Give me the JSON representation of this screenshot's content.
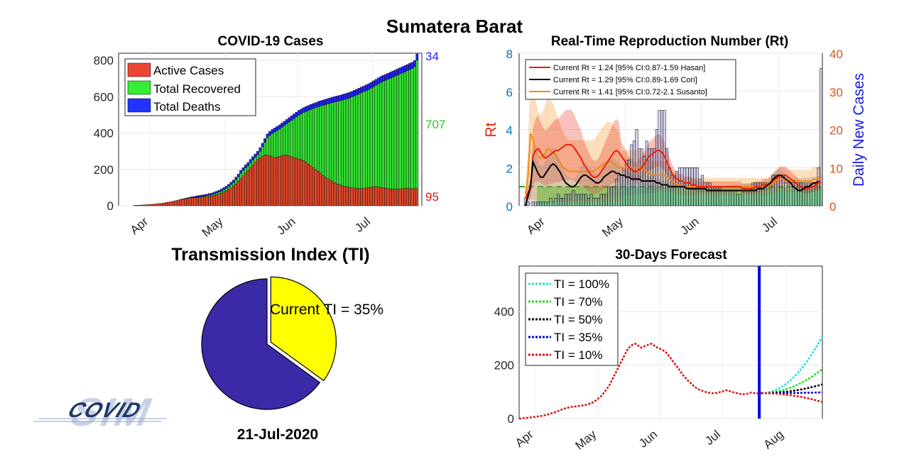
{
  "page_title": "Sumatera Barat",
  "date_label": "21-Jul-2020",
  "logo_text": "COVID SIM",
  "chart_data": [
    {
      "id": "cases",
      "type": "bar",
      "title": "COVID-19 Cases",
      "x_ticks": [
        "Apr",
        "May",
        "Jun",
        "Jul"
      ],
      "y_ticks": [
        "0",
        "200",
        "400",
        "600",
        "800"
      ],
      "ylim": [
        0,
        840
      ],
      "stacked": true,
      "legend": [
        "Active Cases",
        "Total Recovered",
        "Total Deaths"
      ],
      "legend_position": "top-left",
      "colors": {
        "active": "#d9472b",
        "recovered": "#33dd33",
        "deaths": "#2222ee"
      },
      "end_labels": {
        "deaths": "34",
        "recovered": "707",
        "active": "95"
      },
      "days": 120,
      "total_cases": [
        0,
        0,
        2,
        3,
        3,
        4,
        5,
        6,
        7,
        8,
        9,
        10,
        12,
        13,
        15,
        18,
        20,
        22,
        25,
        28,
        31,
        35,
        38,
        41,
        44,
        47,
        50,
        52,
        55,
        57,
        59,
        61,
        64,
        67,
        70,
        75,
        80,
        85,
        92,
        100,
        108,
        118,
        130,
        142,
        158,
        175,
        195,
        210,
        225,
        238,
        255,
        270,
        285,
        300,
        320,
        345,
        370,
        395,
        410,
        420,
        428,
        436,
        445,
        455,
        465,
        475,
        485,
        495,
        505,
        515,
        525,
        532,
        540,
        546,
        552,
        558,
        563,
        568,
        573,
        578,
        582,
        586,
        590,
        594,
        598,
        602,
        605,
        608,
        612,
        616,
        620,
        624,
        630,
        636,
        642,
        648,
        654,
        660,
        666,
        672,
        680,
        688,
        696,
        704,
        712,
        718,
        724,
        730,
        736,
        742,
        748,
        754,
        760,
        766,
        772,
        778,
        784,
        790,
        800,
        836
      ],
      "active_cases": [
        0,
        0,
        2,
        3,
        3,
        4,
        5,
        6,
        7,
        8,
        9,
        10,
        12,
        13,
        15,
        18,
        20,
        22,
        25,
        28,
        31,
        34,
        37,
        39,
        41,
        43,
        44,
        45,
        46,
        47,
        48,
        49,
        50,
        52,
        54,
        57,
        60,
        64,
        70,
        76,
        82,
        90,
        100,
        110,
        120,
        135,
        150,
        165,
        180,
        195,
        210,
        225,
        240,
        255,
        265,
        272,
        278,
        280,
        276,
        270,
        265,
        268,
        272,
        275,
        278,
        280,
        275,
        270,
        265,
        262,
        258,
        254,
        248,
        240,
        230,
        220,
        210,
        200,
        190,
        180,
        168,
        158,
        150,
        142,
        135,
        128,
        120,
        115,
        110,
        106,
        104,
        101,
        99,
        97,
        96,
        95,
        95,
        96,
        98,
        100,
        102,
        104,
        106,
        104,
        101,
        99,
        97,
        95,
        93,
        92,
        91,
        92,
        93,
        95,
        97,
        96,
        95,
        94,
        95,
        95
      ],
      "deaths": [
        0,
        0,
        0,
        0,
        0,
        0,
        0,
        0,
        0,
        0,
        1,
        1,
        1,
        1,
        2,
        2,
        2,
        3,
        3,
        4,
        4,
        4,
        5,
        5,
        5,
        6,
        6,
        6,
        7,
        7,
        7,
        8,
        8,
        8,
        9,
        9,
        10,
        10,
        11,
        11,
        12,
        12,
        13,
        14,
        14,
        15,
        16,
        16,
        17,
        17,
        18,
        18,
        19,
        19,
        20,
        20,
        21,
        21,
        22,
        22,
        22,
        23,
        23,
        23,
        24,
        24,
        24,
        25,
        25,
        25,
        26,
        26,
        26,
        27,
        27,
        27,
        28,
        28,
        28,
        28,
        29,
        29,
        29,
        29,
        30,
        30,
        30,
        30,
        30,
        31,
        31,
        31,
        31,
        31,
        32,
        32,
        32,
        32,
        32,
        32,
        33,
        33,
        33,
        33,
        33,
        33,
        33,
        33,
        33,
        34,
        34,
        34,
        34,
        34,
        34,
        34,
        34,
        34,
        34,
        34
      ]
    },
    {
      "id": "rt",
      "type": "line",
      "title": "Real-Time Reproduction Number (Rt)",
      "ylabel_left": "Rt",
      "ylabel_right": "Daily New Cases",
      "x_ticks": [
        "Apr",
        "May",
        "Jun",
        "Jul"
      ],
      "y_ticks_left": [
        "0",
        "2",
        "4",
        "6",
        "8"
      ],
      "y_ticks_right": [
        "0",
        "10",
        "20",
        "30",
        "40"
      ],
      "ylim_left": [
        0,
        8
      ],
      "ylim_right": [
        0,
        40
      ],
      "legend": [
        "Current Rt = 1.24 [95% CI:0.87-1.59 Hasan]",
        "Current Rt = 1.29 [95% CI:0.89-1.69 Cori]",
        "Current Rt = 1.41 [95% CI:0.72-2.1 Susanto]"
      ],
      "legend_position": "top-left",
      "colors": {
        "hasan": "#e8200a",
        "cori": "#000000",
        "susanto": "#f08a10",
        "left_axis": "#0072bd",
        "right_axis": "#d95319",
        "rt_label": "#e8200a",
        "right_label": "#1a1ae0"
      },
      "daily_new_cases": [
        0,
        0,
        2,
        1,
        0,
        1,
        1,
        1,
        1,
        1,
        1,
        1,
        2,
        1,
        2,
        3,
        2,
        2,
        3,
        3,
        3,
        4,
        3,
        3,
        3,
        3,
        3,
        2,
        3,
        2,
        2,
        2,
        3,
        3,
        3,
        5,
        5,
        5,
        7,
        8,
        8,
        10,
        12,
        12,
        16,
        17,
        20,
        15,
        15,
        13,
        17,
        15,
        15,
        15,
        20,
        25,
        25,
        25,
        15,
        10,
        8,
        8,
        9,
        10,
        10,
        10,
        10,
        10,
        10,
        10,
        10,
        7,
        8,
        6,
        6,
        6,
        5,
        5,
        5,
        5,
        4,
        4,
        4,
        4,
        4,
        4,
        3,
        3,
        4,
        4,
        4,
        4,
        6,
        6,
        6,
        6,
        6,
        6,
        6,
        6,
        8,
        8,
        8,
        8,
        8,
        6,
        6,
        6,
        6,
        6,
        6,
        6,
        6,
        6,
        6,
        6,
        6,
        6,
        10,
        36
      ],
      "rt_hasan": [
        0,
        0,
        0.4,
        0.7,
        0.9,
        2.6,
        2.9,
        3.0,
        2.8,
        2.6,
        2.5,
        2.6,
        2.7,
        2.8,
        2.9,
        2.9,
        3.0,
        3.1,
        3.2,
        3.2,
        3.2,
        3.1,
        2.9,
        2.7,
        2.5,
        2.2,
        2.0,
        1.8,
        1.6,
        1.5,
        1.5,
        1.6,
        1.8,
        2.0,
        2.2,
        2.4,
        2.6,
        2.8,
        2.9,
        2.8,
        2.6,
        2.4,
        2.2,
        2.0,
        1.9,
        1.8,
        1.8,
        1.9,
        2.0,
        2.2,
        2.4,
        2.6,
        2.7,
        2.8,
        2.9,
        2.9,
        2.8,
        2.6,
        2.3,
        2.0,
        1.7,
        1.5,
        1.4,
        1.3,
        1.3,
        1.2,
        1.2,
        1.2,
        1.1,
        1.1,
        1.0,
        1.0,
        1.0,
        1.0,
        1.0,
        1.0,
        1.0,
        1.0,
        1.0,
        1.0,
        1.0,
        1.0,
        1.0,
        1.0,
        1.0,
        1.0,
        1.0,
        1.0,
        0.9,
        0.9,
        0.9,
        0.9,
        0.9,
        1.0,
        1.0,
        1.0,
        1.1,
        1.1,
        1.1,
        1.2,
        1.3,
        1.4,
        1.5,
        1.6,
        1.6,
        1.6,
        1.5,
        1.4,
        1.3,
        1.2,
        1.1,
        1.0,
        0.9,
        0.9,
        0.9,
        1.0,
        1.0,
        1.1,
        1.2,
        1.24
      ],
      "rt_cori": [
        0,
        0,
        0,
        0.5,
        1.0,
        2.3,
        2.0,
        1.7,
        1.5,
        1.5,
        1.7,
        1.9,
        2.1,
        2.2,
        2.1,
        1.9,
        1.7,
        1.4,
        1.2,
        1.1,
        1.0,
        1.0,
        1.1,
        1.3,
        1.5,
        1.6,
        1.6,
        1.5,
        1.4,
        1.3,
        1.2,
        1.2,
        1.3,
        1.5,
        1.6,
        1.7,
        1.8,
        1.8,
        1.7,
        1.7,
        1.6,
        1.6,
        1.5,
        1.5,
        1.4,
        1.4,
        1.4,
        1.4,
        1.3,
        1.3,
        1.3,
        1.3,
        1.3,
        1.3,
        1.2,
        1.2,
        1.1,
        1.1,
        1.1,
        1.0,
        1.0,
        1.0,
        1.0,
        1.0,
        1.0,
        1.0,
        0.9,
        0.9,
        0.9,
        0.9,
        0.9,
        0.9,
        0.9,
        0.9,
        0.8,
        0.8,
        0.8,
        0.8,
        0.8,
        0.8,
        0.8,
        0.8,
        0.8,
        0.8,
        0.8,
        0.8,
        0.8,
        0.8,
        0.8,
        0.8,
        0.8,
        0.8,
        0.8,
        0.8,
        0.9,
        0.9,
        0.9,
        1.0,
        1.1,
        1.2,
        1.4,
        1.5,
        1.6,
        1.6,
        1.5,
        1.4,
        1.3,
        1.2,
        1.0,
        0.9,
        0.8,
        0.8,
        0.9,
        1.0,
        1.0,
        1.1,
        1.2,
        1.2,
        1.29
      ],
      "rt_susanto": [
        0,
        0,
        0.6,
        1.5,
        3.8,
        3.5,
        2.9,
        2.6,
        2.5,
        2.6,
        2.8,
        3.0,
        2.9,
        2.8,
        2.6,
        2.4,
        2.2,
        2.0,
        1.9,
        1.8,
        1.8,
        1.8,
        1.8,
        1.8,
        1.8,
        1.8,
        1.8,
        1.8,
        1.8,
        1.8,
        1.9,
        2.0,
        2.1,
        2.2,
        2.3,
        2.3,
        2.3,
        2.2,
        2.1,
        2.0,
        2.0,
        2.0,
        2.0,
        2.0,
        2.0,
        2.0,
        2.0,
        2.0,
        2.0,
        1.9,
        1.8,
        1.7,
        1.6,
        1.6,
        1.6,
        1.6,
        1.6,
        1.6,
        1.5,
        1.4,
        1.3,
        1.2,
        1.1,
        1.1,
        1.0,
        1.0,
        1.0,
        1.0,
        1.0,
        1.0,
        1.0,
        1.0,
        1.0,
        1.0,
        1.0,
        1.0,
        1.0,
        1.0,
        1.0,
        1.0,
        1.0,
        1.0,
        1.0,
        1.0,
        1.0,
        1.0,
        1.0,
        1.0,
        1.0,
        1.0,
        1.0,
        1.0,
        1.0,
        1.0,
        1.0,
        1.0,
        1.0,
        1.0,
        1.0,
        1.1,
        1.2,
        1.3,
        1.4,
        1.4,
        1.4,
        1.3,
        1.3,
        1.3,
        1.3,
        1.3,
        1.3,
        1.3,
        1.3,
        1.3,
        1.3,
        1.3,
        1.4,
        1.4,
        1.41,
        1.41
      ]
    },
    {
      "id": "ti",
      "type": "pie",
      "title": "Transmission Index (TI)",
      "values": [
        35,
        65
      ],
      "colors": [
        "#ffff00",
        "#3a2aa8"
      ],
      "label": "Current TI = 35%"
    },
    {
      "id": "forecast",
      "type": "line",
      "title": "30-Days Forecast",
      "x_ticks": [
        "Apr",
        "May",
        "Jun",
        "Jul",
        "Aug"
      ],
      "y_ticks": [
        "0",
        "200",
        "400"
      ],
      "ylim": [
        0,
        570
      ],
      "legend_position": "top-left",
      "current_day_index": 118,
      "current_line_color": "#0000dd",
      "history_color": "#dd1111",
      "series": [
        {
          "name": "TI = 100%",
          "color": "#22dddd",
          "end_value": 308
        },
        {
          "name": "TI = 70%",
          "color": "#22dd22",
          "end_value": 185
        },
        {
          "name": "TI = 50%",
          "color": "#000000",
          "end_value": 128
        },
        {
          "name": "TI = 35%",
          "color": "#0000cc",
          "end_value": 98
        },
        {
          "name": "TI = 10%",
          "color": "#dd1111",
          "end_value": 62
        }
      ],
      "forecast_days": 30
    }
  ]
}
